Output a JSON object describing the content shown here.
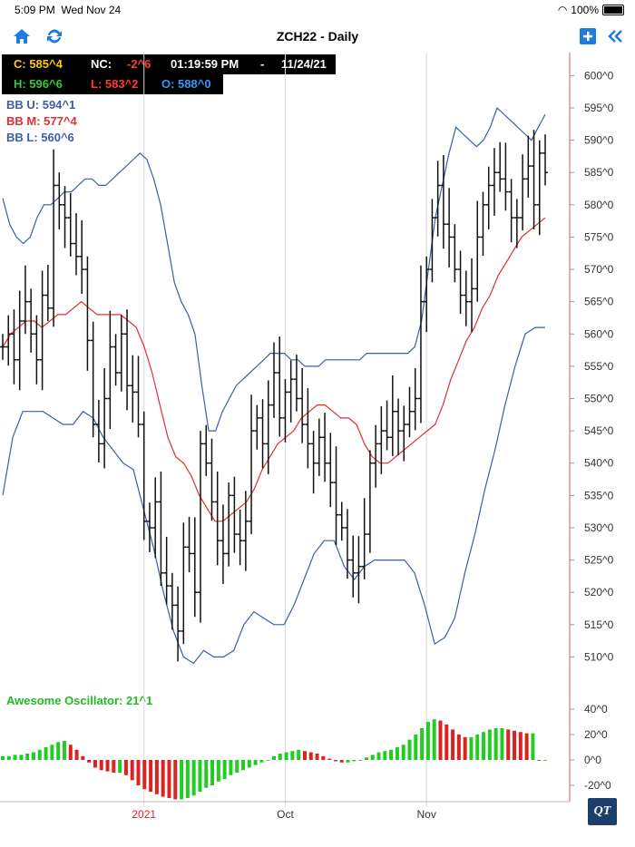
{
  "status": {
    "time": "5:09 PM",
    "date": "Wed Nov 24",
    "battery": "100%"
  },
  "nav": {
    "title": "ZCH22 - Daily"
  },
  "quote": {
    "close": "C: 585^4",
    "nc_label": "NC:",
    "nc_value": "-2^6",
    "time": "01:19:59 PM",
    "sep": "-",
    "date": "11/24/21",
    "high": "H: 596^6",
    "low": "L: 583^2",
    "open": "O: 588^0"
  },
  "bollinger": {
    "upper": "BB U: 594^1",
    "middle": "BB M: 577^4",
    "lower": "BB L: 560^6"
  },
  "oscillator": {
    "label": "Awesome Oscillator: 21^1"
  },
  "logo": "QT",
  "colors": {
    "close": "#ffcc00",
    "nc": "#ff3b30",
    "high": "#33cc33",
    "low": "#ff3b30",
    "open": "#3399ff",
    "bb_band": "#3a5fa8",
    "bb_mid": "#e03030",
    "osc_up": "#22cc22",
    "osc_down": "#dd2222",
    "osc_label": "#22bb22"
  },
  "chart_data": {
    "type": "ohlc",
    "ylim": [
      505,
      603
    ],
    "yticks": [
      600,
      595,
      590,
      585,
      580,
      575,
      570,
      565,
      560,
      555,
      550,
      545,
      540,
      535,
      530,
      525,
      520,
      515,
      510
    ],
    "ytick_labels": [
      "600^0",
      "595^0",
      "590^0",
      "585^0",
      "580^0",
      "575^0",
      "570^0",
      "565^0",
      "560^0",
      "555^0",
      "550^0",
      "545^0",
      "540^0",
      "535^0",
      "530^0",
      "525^0",
      "520^0",
      "515^0",
      "510^0"
    ],
    "x_labels": [
      {
        "label": "2021",
        "index": 25,
        "color": "#dd2222"
      },
      {
        "label": "Oct",
        "index": 50,
        "color": "#333333"
      },
      {
        "label": "Nov",
        "index": 75,
        "color": "#333333"
      }
    ],
    "bars_count": 97,
    "close_series": [
      558,
      560,
      556,
      562,
      565,
      560,
      556,
      566,
      564,
      583,
      580,
      578,
      574,
      572,
      570,
      559,
      546,
      543,
      550,
      558,
      554,
      560,
      552,
      551,
      546,
      531,
      530,
      534,
      523,
      521,
      518,
      514,
      527,
      526,
      520,
      543,
      540,
      534,
      528,
      526,
      535,
      529,
      528,
      531,
      545,
      547,
      543,
      549,
      554,
      547,
      551,
      553,
      550,
      546,
      543,
      540,
      544,
      540,
      537,
      532,
      530,
      525,
      523,
      524,
      529,
      540,
      543,
      545,
      544,
      548,
      545,
      546,
      548,
      550,
      565,
      570,
      578,
      583,
      577,
      575,
      570,
      566,
      565,
      567,
      575,
      580,
      583,
      585,
      584,
      582,
      578,
      578,
      584,
      586,
      580,
      588,
      585
    ],
    "bb_upper": [
      581,
      577,
      575,
      574,
      575,
      578,
      580,
      580,
      581,
      582,
      582,
      583,
      584,
      584,
      583,
      583,
      584,
      585,
      586,
      587,
      588,
      587,
      584,
      580,
      574,
      568,
      565,
      563,
      560,
      552,
      545,
      545,
      548,
      550,
      552,
      553,
      554,
      555,
      556,
      557,
      557,
      557,
      556,
      556,
      555,
      555,
      555,
      556,
      556,
      556,
      556,
      556,
      556,
      557,
      557,
      557,
      557,
      557,
      557,
      557,
      558,
      562,
      570,
      578,
      583,
      588,
      592,
      591,
      590,
      589,
      590,
      592,
      595,
      594,
      593,
      592,
      591,
      590,
      592,
      594
    ],
    "bb_middle": [
      558,
      560,
      561,
      562,
      562,
      561,
      562,
      563,
      563,
      564,
      565,
      564,
      563,
      563,
      563,
      563,
      562,
      561,
      558,
      554,
      549,
      544,
      541,
      540,
      538,
      535,
      533,
      531,
      531,
      532,
      533,
      534,
      536,
      539,
      541,
      543,
      544,
      545,
      547,
      548,
      549,
      549,
      548,
      547,
      547,
      546,
      543,
      541,
      540,
      540,
      541,
      542,
      543,
      544,
      545,
      546,
      549,
      553,
      556,
      559,
      561,
      564,
      566,
      569,
      571,
      573,
      575,
      576,
      577,
      578
    ],
    "bb_lower": [
      535,
      544,
      548,
      548,
      548,
      547,
      546,
      546,
      548,
      547,
      544,
      542,
      540,
      539,
      533,
      527,
      520,
      514,
      510,
      509,
      511,
      510,
      510,
      511,
      515,
      517,
      516,
      515,
      515,
      518,
      522,
      526,
      528,
      528,
      524,
      522,
      524,
      525,
      525,
      525,
      525,
      523,
      518,
      512,
      513,
      516,
      523,
      529,
      536,
      542,
      549,
      555,
      560,
      561,
      561
    ],
    "osc_ylim": [
      -30,
      45
    ],
    "osc_ticks": [
      40,
      20,
      0,
      -20
    ],
    "osc_tick_labels": [
      "40^0",
      "20^0",
      "0^0",
      "-20^0"
    ],
    "osc_values": [
      3,
      3,
      4,
      4,
      5,
      6,
      8,
      10,
      12,
      14,
      15,
      12,
      8,
      3,
      -2,
      -6,
      -8,
      -9,
      -10,
      -10,
      -12,
      -16,
      -20,
      -23,
      -25,
      -27,
      -29,
      -30,
      -31,
      -31,
      -30,
      -28,
      -25,
      -22,
      -20,
      -17,
      -15,
      -12,
      -10,
      -8,
      -6,
      -4,
      -2,
      0,
      3,
      5,
      6,
      7,
      8,
      7,
      6,
      5,
      3,
      1,
      -1,
      -2,
      -2,
      -1,
      0,
      2,
      4,
      6,
      7,
      8,
      10,
      12,
      16,
      20,
      25,
      30,
      32,
      31,
      28,
      24,
      20,
      18,
      18,
      20,
      22,
      24,
      25,
      25,
      24,
      23,
      22,
      21,
      21,
      0,
      0
    ]
  }
}
